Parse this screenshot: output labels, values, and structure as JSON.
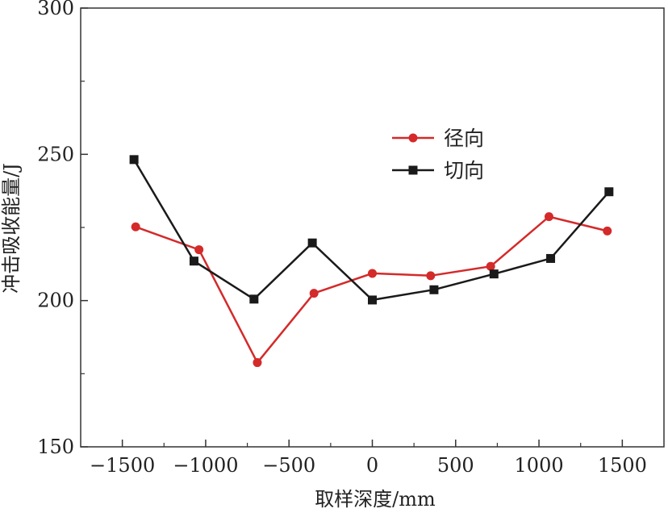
{
  "chart_data": {
    "type": "line",
    "title": "",
    "xlabel": "取样深度/mm",
    "ylabel": "冲击吸收能量/J",
    "xlim": [
      -1750,
      1750
    ],
    "ylim": [
      150,
      300
    ],
    "xticks": [
      -1500,
      -1000,
      -500,
      0,
      500,
      1000,
      1500
    ],
    "yticks": [
      150,
      200,
      250,
      300
    ],
    "xtick_labels": [
      "−1500",
      "−1000",
      "−500",
      "0",
      "500",
      "1000",
      "1500"
    ],
    "ytick_labels": [
      "150",
      "200",
      "250",
      "300"
    ],
    "grid": false,
    "legend_position": "center-right",
    "series": [
      {
        "name": "径向",
        "color": "#d42a2a",
        "marker": "circle",
        "x": [
          -1420,
          -1040,
          -690,
          -350,
          0,
          350,
          710,
          1060,
          1410
        ],
        "y": [
          225.2,
          217.4,
          178.8,
          202.5,
          209.3,
          208.5,
          211.7,
          228.7,
          223.8
        ]
      },
      {
        "name": "切向",
        "color": "#1a1a1a",
        "marker": "square",
        "x": [
          -1430,
          -1070,
          -710,
          -360,
          0,
          370,
          730,
          1070,
          1420
        ],
        "y": [
          248.2,
          213.5,
          200.5,
          219.7,
          200.2,
          203.7,
          209.1,
          214.4,
          237.2
        ]
      }
    ]
  }
}
